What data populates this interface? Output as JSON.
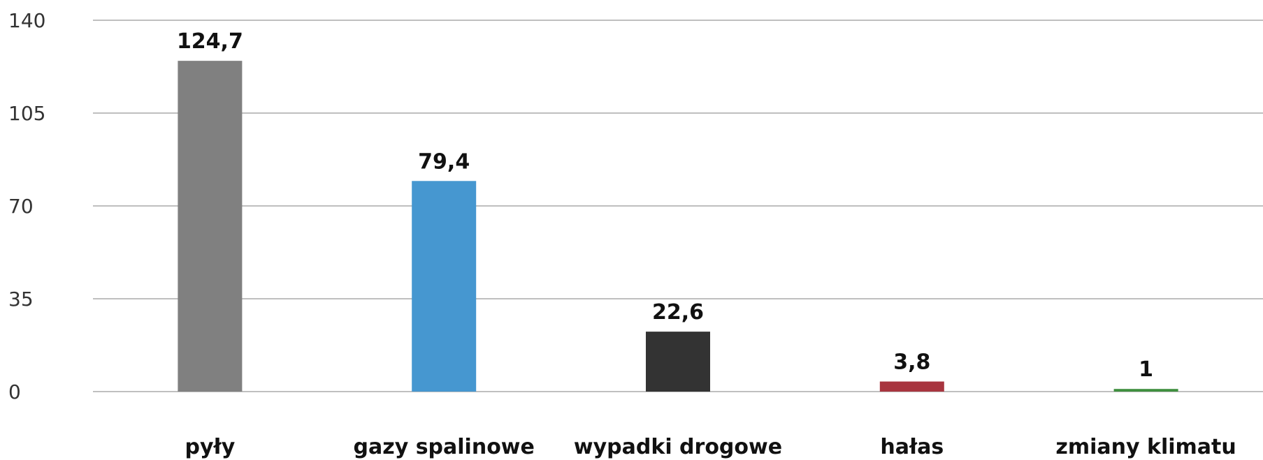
{
  "chart_data": {
    "type": "bar",
    "categories": [
      "pyły",
      "gazy spalinowe",
      "wypadki drogowe",
      "hałas",
      "zmiany klimatu"
    ],
    "values": [
      124.7,
      79.4,
      22.6,
      3.8,
      1
    ],
    "data_labels": [
      "124,7",
      "79,4",
      "22,6",
      "3,8",
      "1"
    ],
    "colors": [
      "#808080",
      "#4697d0",
      "#333333",
      "#a8353f",
      "#3f8f3f"
    ],
    "ylim": [
      0,
      140
    ],
    "yticks": [
      0,
      35,
      70,
      105,
      140
    ],
    "ytick_labels": [
      "0",
      "35",
      "70",
      "105",
      "140"
    ],
    "grid": true,
    "title": "",
    "xlabel": "",
    "ylabel": ""
  }
}
